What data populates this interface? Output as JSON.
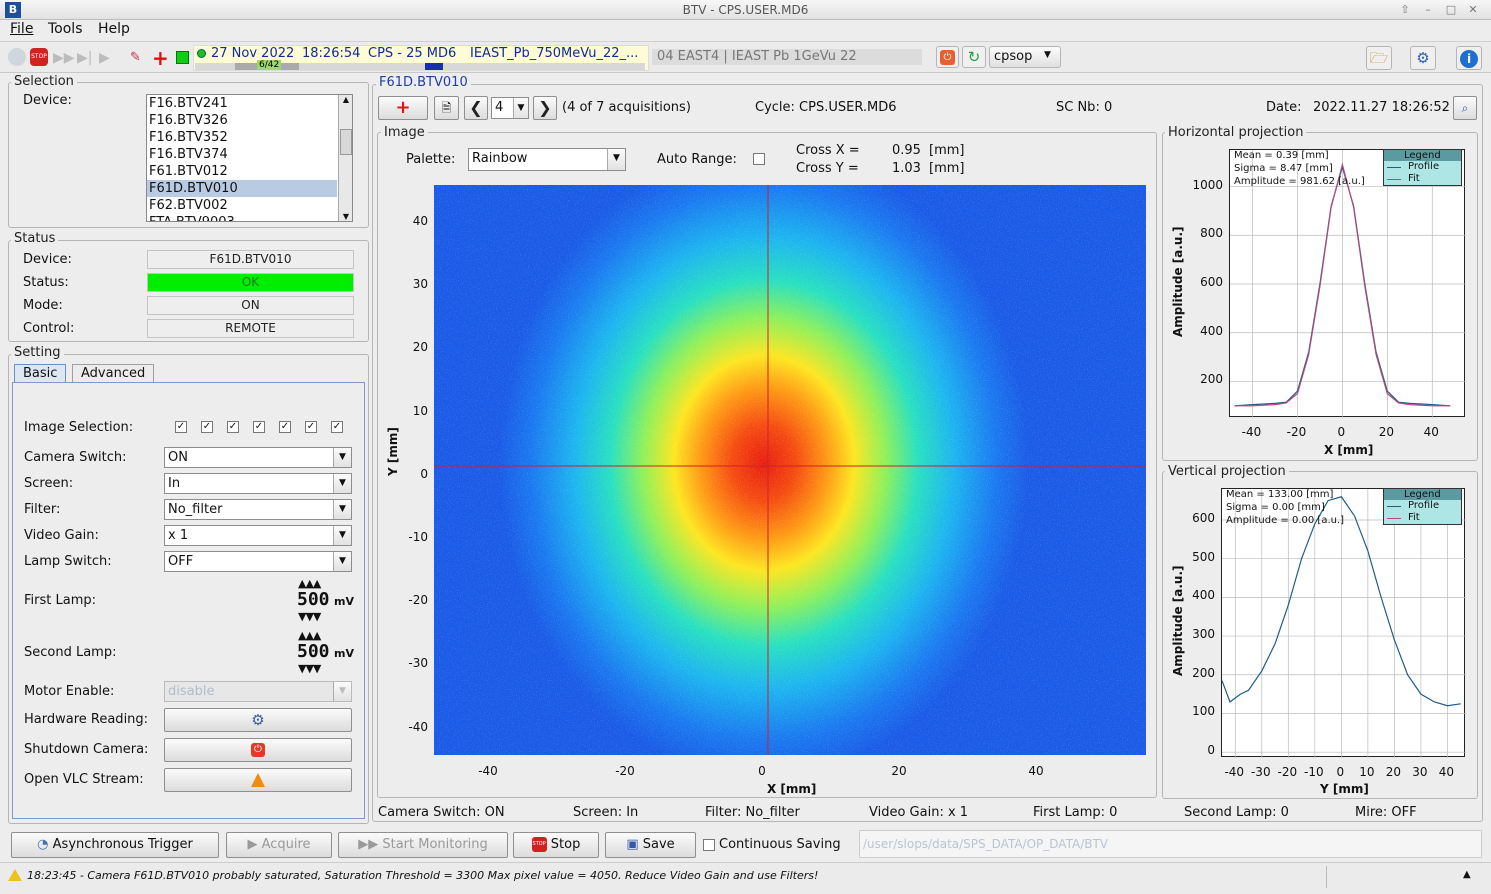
{
  "window": {
    "title": "BTV - CPS.USER.MD6"
  },
  "menu": {
    "file": "File",
    "tools": "Tools",
    "help": "Help"
  },
  "toolbar": {
    "date": "27 Nov 2022",
    "time": "18:26:54",
    "cycle": "CPS - 25 MD6",
    "user": "IEAST_Pb_750MeVu_22_...",
    "progress": "6/42",
    "progress_fraction": 0.143,
    "secondary": "04 EAST4 | IEAST Pb 1GeVu 22",
    "rbac_user": "cpsop"
  },
  "selection": {
    "legend": "Selection",
    "device_label": "Device:",
    "devices": [
      "F16.BTV241",
      "F16.BTV326",
      "F16.BTV352",
      "F16.BTV374",
      "F61.BTV012",
      "F61D.BTV010",
      "F62.BTV002",
      "FTA.BTV9003"
    ],
    "selected": "F61D.BTV010"
  },
  "status": {
    "legend": "Status",
    "device_label": "Device:",
    "device": "F61D.BTV010",
    "status_label": "Status:",
    "status": "OK",
    "mode_label": "Mode:",
    "mode": "ON",
    "control_label": "Control:",
    "control": "REMOTE",
    "ok_color": "#00ee00"
  },
  "setting": {
    "legend": "Setting",
    "tab_basic": "Basic",
    "tab_advanced": "Advanced",
    "image_selection": "Image Selection:",
    "camera_switch": "Camera Switch:",
    "camera_switch_val": "ON",
    "screen": "Screen:",
    "screen_val": "In",
    "filter": "Filter:",
    "filter_val": "No_filter",
    "video_gain": "Video Gain:",
    "video_gain_val": "x 1",
    "lamp_switch": "Lamp Switch:",
    "lamp_switch_val": "OFF",
    "first_lamp": "First Lamp:",
    "first_lamp_val": "500",
    "second_lamp": "Second Lamp:",
    "second_lamp_val": "500",
    "unit_mv": "mV",
    "motor_enable": "Motor Enable:",
    "motor_enable_val": "disable",
    "hardware_reading": "Hardware Reading:",
    "shutdown_camera": "Shutdown Camera:",
    "open_vlc": "Open VLC Stream:"
  },
  "acq": {
    "device_title": "F61D.BTV010",
    "index": "4",
    "count_text": "(4 of 7 acquisitions)",
    "cycle": "Cycle: CPS.USER.MD6",
    "sc_nb": "SC Nb: 0",
    "date_label": "Date:",
    "date": "2022.11.27 18:26:52"
  },
  "image": {
    "legend": "Image",
    "palette_label": "Palette:",
    "palette": "Rainbow",
    "auto_range": "Auto Range:",
    "cross_x_label": "Cross X =",
    "cross_x": "0.95",
    "cross_y_label": "Cross Y =",
    "cross_y": "1.03",
    "unit": "[mm]",
    "xlabel": "X [mm]",
    "ylabel": "Y [mm]",
    "xticks": [
      "-40",
      "-20",
      "0",
      "20",
      "40"
    ],
    "yticks": [
      "40",
      "30",
      "20",
      "10",
      "0",
      "-10",
      "-20",
      "-30",
      "-40"
    ],
    "cross_color": "#d0202a"
  },
  "hproj": {
    "legend": "Horizontal projection",
    "mean": "Mean = 0.39 [mm]",
    "sigma": "Sigma = 8.47 [mm]",
    "amp": "Amplitude = 981.62 [a.u.]",
    "legend_title": "Legend",
    "profile": "Profile",
    "fit": "Fit",
    "xlabel": "X [mm]",
    "ylabel": "Amplitude [a.u.]",
    "xticks": [
      "-40",
      "-20",
      "0",
      "20",
      "40"
    ],
    "yticks": [
      "1000",
      "800",
      "600",
      "400",
      "200"
    ]
  },
  "vproj": {
    "legend": "Vertical projection",
    "mean": "Mean = 133.00 [mm]",
    "sigma": "Sigma = 0.00 [mm]",
    "amp": "Amplitude = 0.00 [a.u.]",
    "legend_title": "Legend",
    "profile": "Profile",
    "fit": "Fit",
    "xlabel": "Y [mm]",
    "ylabel": "Amplitude [a.u.]",
    "xticks": [
      "-40",
      "-30",
      "-20",
      "-10",
      "0",
      "10",
      "20",
      "30",
      "40"
    ],
    "yticks": [
      "600",
      "500",
      "400",
      "300",
      "200",
      "100",
      "0"
    ]
  },
  "statusline": {
    "camera": "Camera Switch: ON",
    "screen": "Screen: In",
    "filter": "Filter: No_filter",
    "gain": "Video Gain: x 1",
    "lamp1": "First Lamp: 0",
    "lamp2": "Second Lamp: 0",
    "mire": "Mire: OFF"
  },
  "buttons": {
    "async": "Asynchronous Trigger",
    "acquire": "Acquire",
    "monitor": "Start Monitoring",
    "stop": "Stop",
    "save": "Save",
    "continuous": "Continuous Saving",
    "path": "/user/slops/data/SPS_DATA/OP_DATA/BTV"
  },
  "message": "18:23:45 - Camera F61D.BTV010 probably saturated, Saturation Threshold = 3300 Max pixel value = 4050. Reduce Video Gain and use Filters!",
  "chart_data": [
    {
      "type": "line",
      "title": "Horizontal projection",
      "xlabel": "X [mm]",
      "ylabel": "Amplitude [a.u.]",
      "xlim": [
        -50,
        55
      ],
      "ylim": [
        50,
        1150
      ],
      "series": [
        {
          "name": "Profile",
          "x": [
            -48,
            -40,
            -30,
            -25,
            -20,
            -15,
            -10,
            -5,
            0,
            5,
            10,
            15,
            20,
            25,
            30,
            40,
            48
          ],
          "values": [
            100,
            105,
            110,
            115,
            160,
            320,
            600,
            920,
            1080,
            920,
            600,
            320,
            160,
            115,
            110,
            105,
            100
          ]
        },
        {
          "name": "Fit",
          "x": [
            -48,
            -40,
            -30,
            -25,
            -20,
            -15,
            -10,
            -5,
            0,
            5,
            10,
            15,
            20,
            25,
            30,
            40,
            48
          ],
          "values": [
            100,
            100,
            105,
            112,
            150,
            310,
            590,
            915,
            1090,
            915,
            590,
            310,
            150,
            112,
            105,
            100,
            100
          ]
        }
      ]
    },
    {
      "type": "line",
      "title": "Vertical projection",
      "xlabel": "Y [mm]",
      "ylabel": "Amplitude [a.u.]",
      "xlim": [
        -45,
        47
      ],
      "ylim": [
        -15,
        680
      ],
      "series": [
        {
          "name": "Profile",
          "x": [
            -45,
            -42,
            -38,
            -35,
            -30,
            -25,
            -20,
            -15,
            -10,
            -5,
            0,
            5,
            10,
            15,
            20,
            25,
            30,
            35,
            40,
            45
          ],
          "values": [
            185,
            130,
            150,
            160,
            210,
            280,
            380,
            500,
            590,
            650,
            660,
            610,
            520,
            400,
            290,
            200,
            150,
            130,
            120,
            125
          ]
        }
      ]
    }
  ]
}
